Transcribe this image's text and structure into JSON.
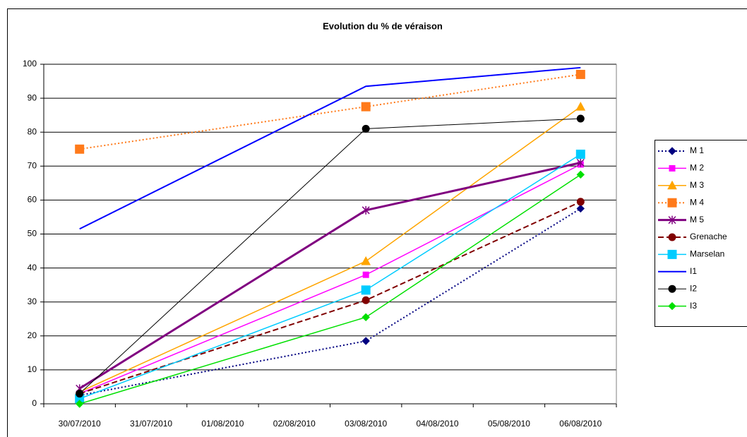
{
  "chart_data": {
    "type": "line",
    "title": "Evolution du % de véraison",
    "categories": [
      "30/07/2010",
      "31/07/2010",
      "01/08/2010",
      "02/08/2010",
      "03/08/2010",
      "04/08/2010",
      "05/08/2010",
      "06/08/2010"
    ],
    "x": [
      "30/07/2010",
      "03/08/2010",
      "06/08/2010"
    ],
    "ylim": [
      0,
      100
    ],
    "yticks": [
      0,
      10,
      20,
      30,
      40,
      50,
      60,
      70,
      80,
      90,
      100
    ],
    "grid": true,
    "legend": "right",
    "series": [
      {
        "name": "M 1",
        "color": "#000080",
        "dash": "dotted",
        "width": 2,
        "marker": "diamond",
        "values": [
          2.5,
          18.5,
          57.5
        ]
      },
      {
        "name": "M 2",
        "color": "#ff00ff",
        "dash": "solid",
        "width": 1.5,
        "marker": "square",
        "values": [
          3,
          38,
          70.5
        ]
      },
      {
        "name": "M 3",
        "color": "#ffa500",
        "dash": "solid",
        "width": 1.5,
        "marker": "triangle",
        "values": [
          3.5,
          42,
          87.5
        ]
      },
      {
        "name": "M 4",
        "color": "#ff7a1a",
        "dash": "dotted",
        "width": 2,
        "marker": "bigsquare",
        "values": [
          75,
          87.5,
          97
        ]
      },
      {
        "name": "M 5",
        "color": "#800080",
        "dash": "solid",
        "width": 3,
        "marker": "star",
        "values": [
          4.5,
          57,
          71
        ]
      },
      {
        "name": "Grenache",
        "color": "#800000",
        "dash": "dashed",
        "width": 2,
        "marker": "circle",
        "values": [
          3,
          30.5,
          59.5
        ]
      },
      {
        "name": "Marselan",
        "color": "#00ccff",
        "dash": "solid",
        "width": 1.5,
        "marker": "bigsquare",
        "values": [
          1.5,
          33.5,
          73.5
        ]
      },
      {
        "name": "I1",
        "color": "#0000ff",
        "dash": "solid",
        "width": 2,
        "marker": "none",
        "values": [
          51.5,
          93.5,
          99
        ]
      },
      {
        "name": "I2",
        "color": "#000000",
        "dash": "solid",
        "width": 1,
        "marker": "circle",
        "values": [
          3,
          81,
          84
        ]
      },
      {
        "name": "I3",
        "color": "#00e000",
        "dash": "solid",
        "width": 1.5,
        "marker": "diamond",
        "values": [
          0,
          25.5,
          67.5
        ]
      }
    ]
  }
}
